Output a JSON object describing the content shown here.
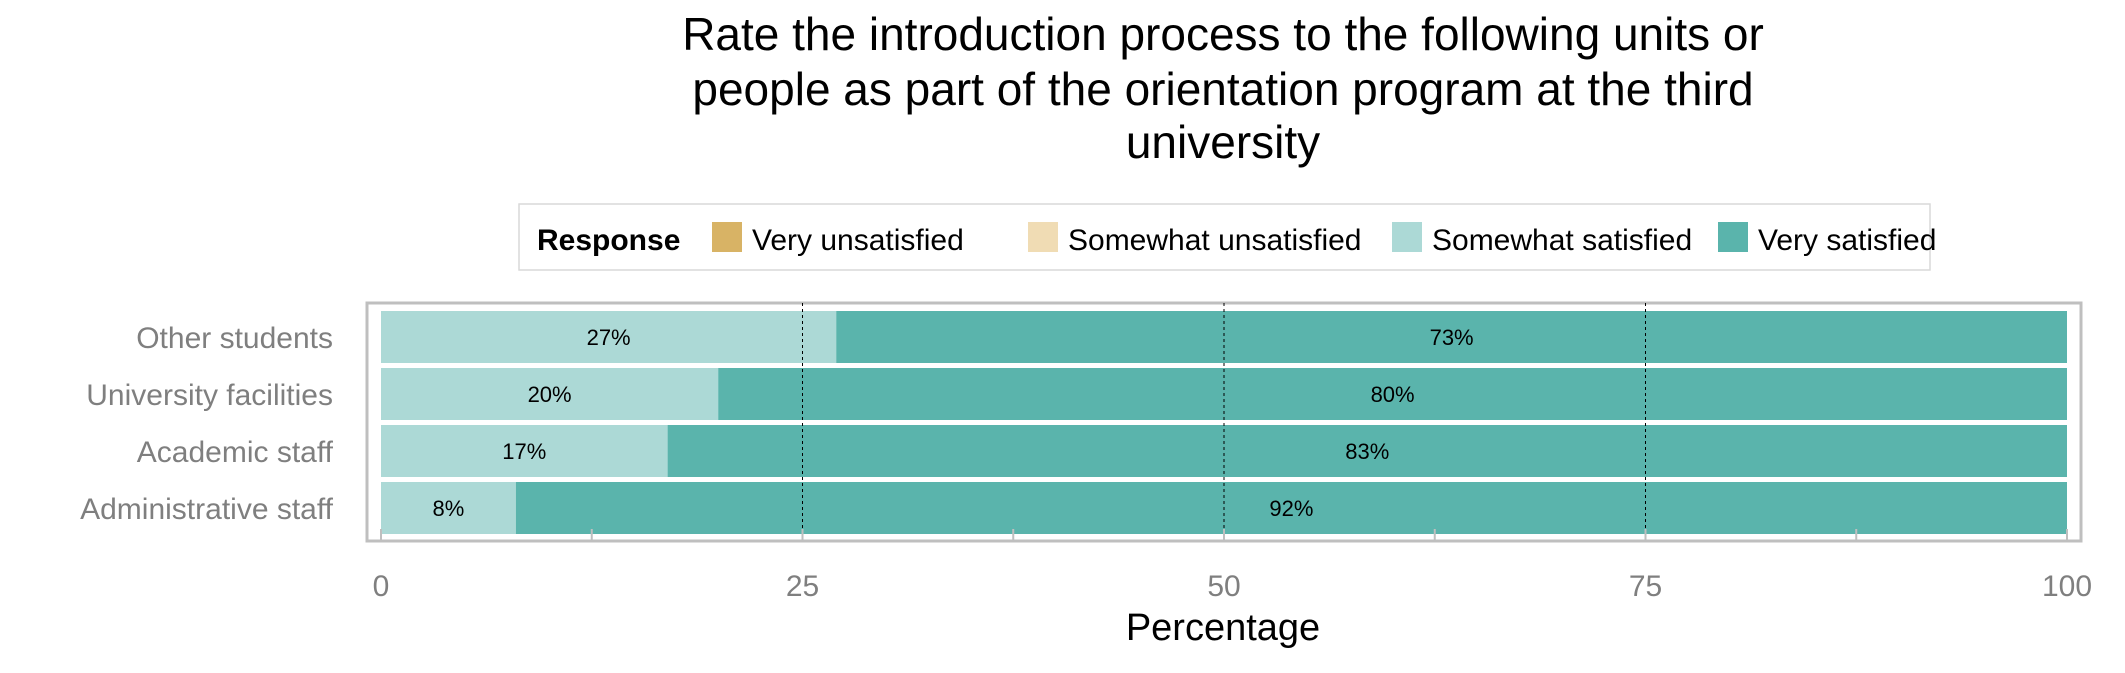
{
  "chart_data": {
    "type": "bar",
    "orientation": "horizontal",
    "stacked": true,
    "title_lines": [
      "Rate the introduction process to the following units or",
      "people as part of the orientation program at the third",
      "university"
    ],
    "xlabel": "Percentage",
    "ylabel": "",
    "xlim": [
      0,
      100
    ],
    "x_ticks": [
      0,
      25,
      50,
      75,
      100
    ],
    "grid": "vertical dashed at 25, 50, 75",
    "legend_title": "Response",
    "legend_position": "top",
    "legend": [
      {
        "name": "Very unsatisfied",
        "color": "#d8b365"
      },
      {
        "name": "Somewhat unsatisfied",
        "color": "#f0dcb4"
      },
      {
        "name": "Somewhat satisfied",
        "color": "#acd9d6"
      },
      {
        "name": "Very satisfied",
        "color": "#5ab4ac"
      }
    ],
    "categories": [
      "Other students",
      "University facilities",
      "Academic staff",
      "Administrative staff"
    ],
    "series": [
      {
        "name": "Somewhat satisfied",
        "color": "#acd9d6",
        "values": [
          27,
          20,
          17,
          8
        ],
        "labels": [
          "27%",
          "20%",
          "17%",
          "8%"
        ]
      },
      {
        "name": "Very satisfied",
        "color": "#5ab4ac",
        "values": [
          73,
          80,
          83,
          92
        ],
        "labels": [
          "73%",
          "80%",
          "83%",
          "92%"
        ]
      }
    ]
  }
}
